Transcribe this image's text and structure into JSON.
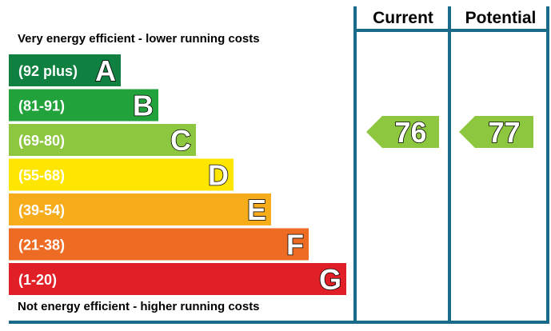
{
  "chart_data": {
    "type": "bar",
    "title": "",
    "caption_top": "Very energy efficient - lower running costs",
    "caption_bottom": "Not energy efficient - higher running costs",
    "columns": [
      "Current",
      "Potential"
    ],
    "bands": [
      {
        "range": "(92 plus)",
        "letter": "A",
        "color": "#0f8040"
      },
      {
        "range": "(81-91)",
        "letter": "B",
        "color": "#22a23b"
      },
      {
        "range": "(69-80)",
        "letter": "C",
        "color": "#8dc63f"
      },
      {
        "range": "(55-68)",
        "letter": "D",
        "color": "#ffe600"
      },
      {
        "range": "(39-54)",
        "letter": "E",
        "color": "#f6ac1b"
      },
      {
        "range": "(21-38)",
        "letter": "F",
        "color": "#ee6b24"
      },
      {
        "range": "(1-20)",
        "letter": "G",
        "color": "#e11f26"
      }
    ],
    "ratings": [
      {
        "column": "Current",
        "value": 76,
        "band": "C",
        "color": "#8dc63f"
      },
      {
        "column": "Potential",
        "value": 77,
        "band": "C",
        "color": "#8dc63f"
      }
    ],
    "frame_color": "#1a6a8a"
  }
}
